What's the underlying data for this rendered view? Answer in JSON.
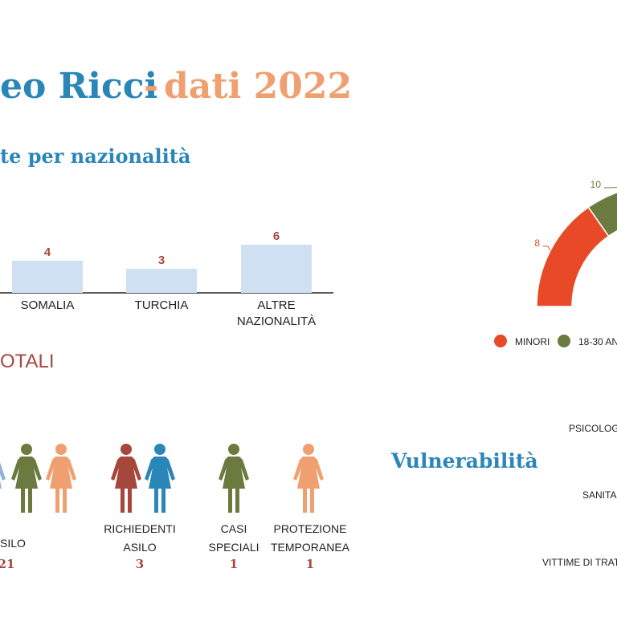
{
  "header": {
    "title_main": "eo Ricci",
    "title_sep": "-",
    "title_year": "dati 2022"
  },
  "nationality": {
    "title": "te per nazionalità",
    "chart_data": {
      "type": "bar",
      "color": "#cfe0f2",
      "label_color": "#a5473d",
      "categories": [
        [
          "SOMALIA"
        ],
        [
          "TURCHIA"
        ],
        [
          "ALTRE",
          "NAZIONALITÀ"
        ]
      ],
      "values": [
        4,
        3,
        6
      ]
    }
  },
  "totals": {
    "title": "OTALI",
    "groups": [
      {
        "label": [
          "SILO"
        ],
        "count": "21",
        "colors": [
          "#8fb3dd",
          "#6b7a3e",
          "#f0a070"
        ]
      },
      {
        "label": [
          "RICHIEDENTI",
          "ASILO"
        ],
        "count": "3",
        "colors": [
          "#a5473d",
          "#2a86b8"
        ]
      },
      {
        "label": [
          "CASI",
          "SPECIALI"
        ],
        "count": "1",
        "colors": [
          "#6b7a3e"
        ]
      },
      {
        "label": [
          "PROTEZIONE",
          "TEMPORANEA"
        ],
        "count": "1",
        "colors": [
          "#f0a070"
        ]
      }
    ]
  },
  "age": {
    "chart_data": {
      "type": "semi-donut",
      "series": [
        {
          "name": "MINORI",
          "color": "#e84a27",
          "values": [
            8
          ]
        },
        {
          "name": "18-30 AN",
          "color": "#6b7a3e",
          "values": [
            10
          ]
        }
      ]
    }
  },
  "vulnerability": {
    "title": "Vulnerabilità",
    "categories": [
      "PSICOLOG",
      "SANITA",
      "VITTIME DI TRAT"
    ]
  }
}
